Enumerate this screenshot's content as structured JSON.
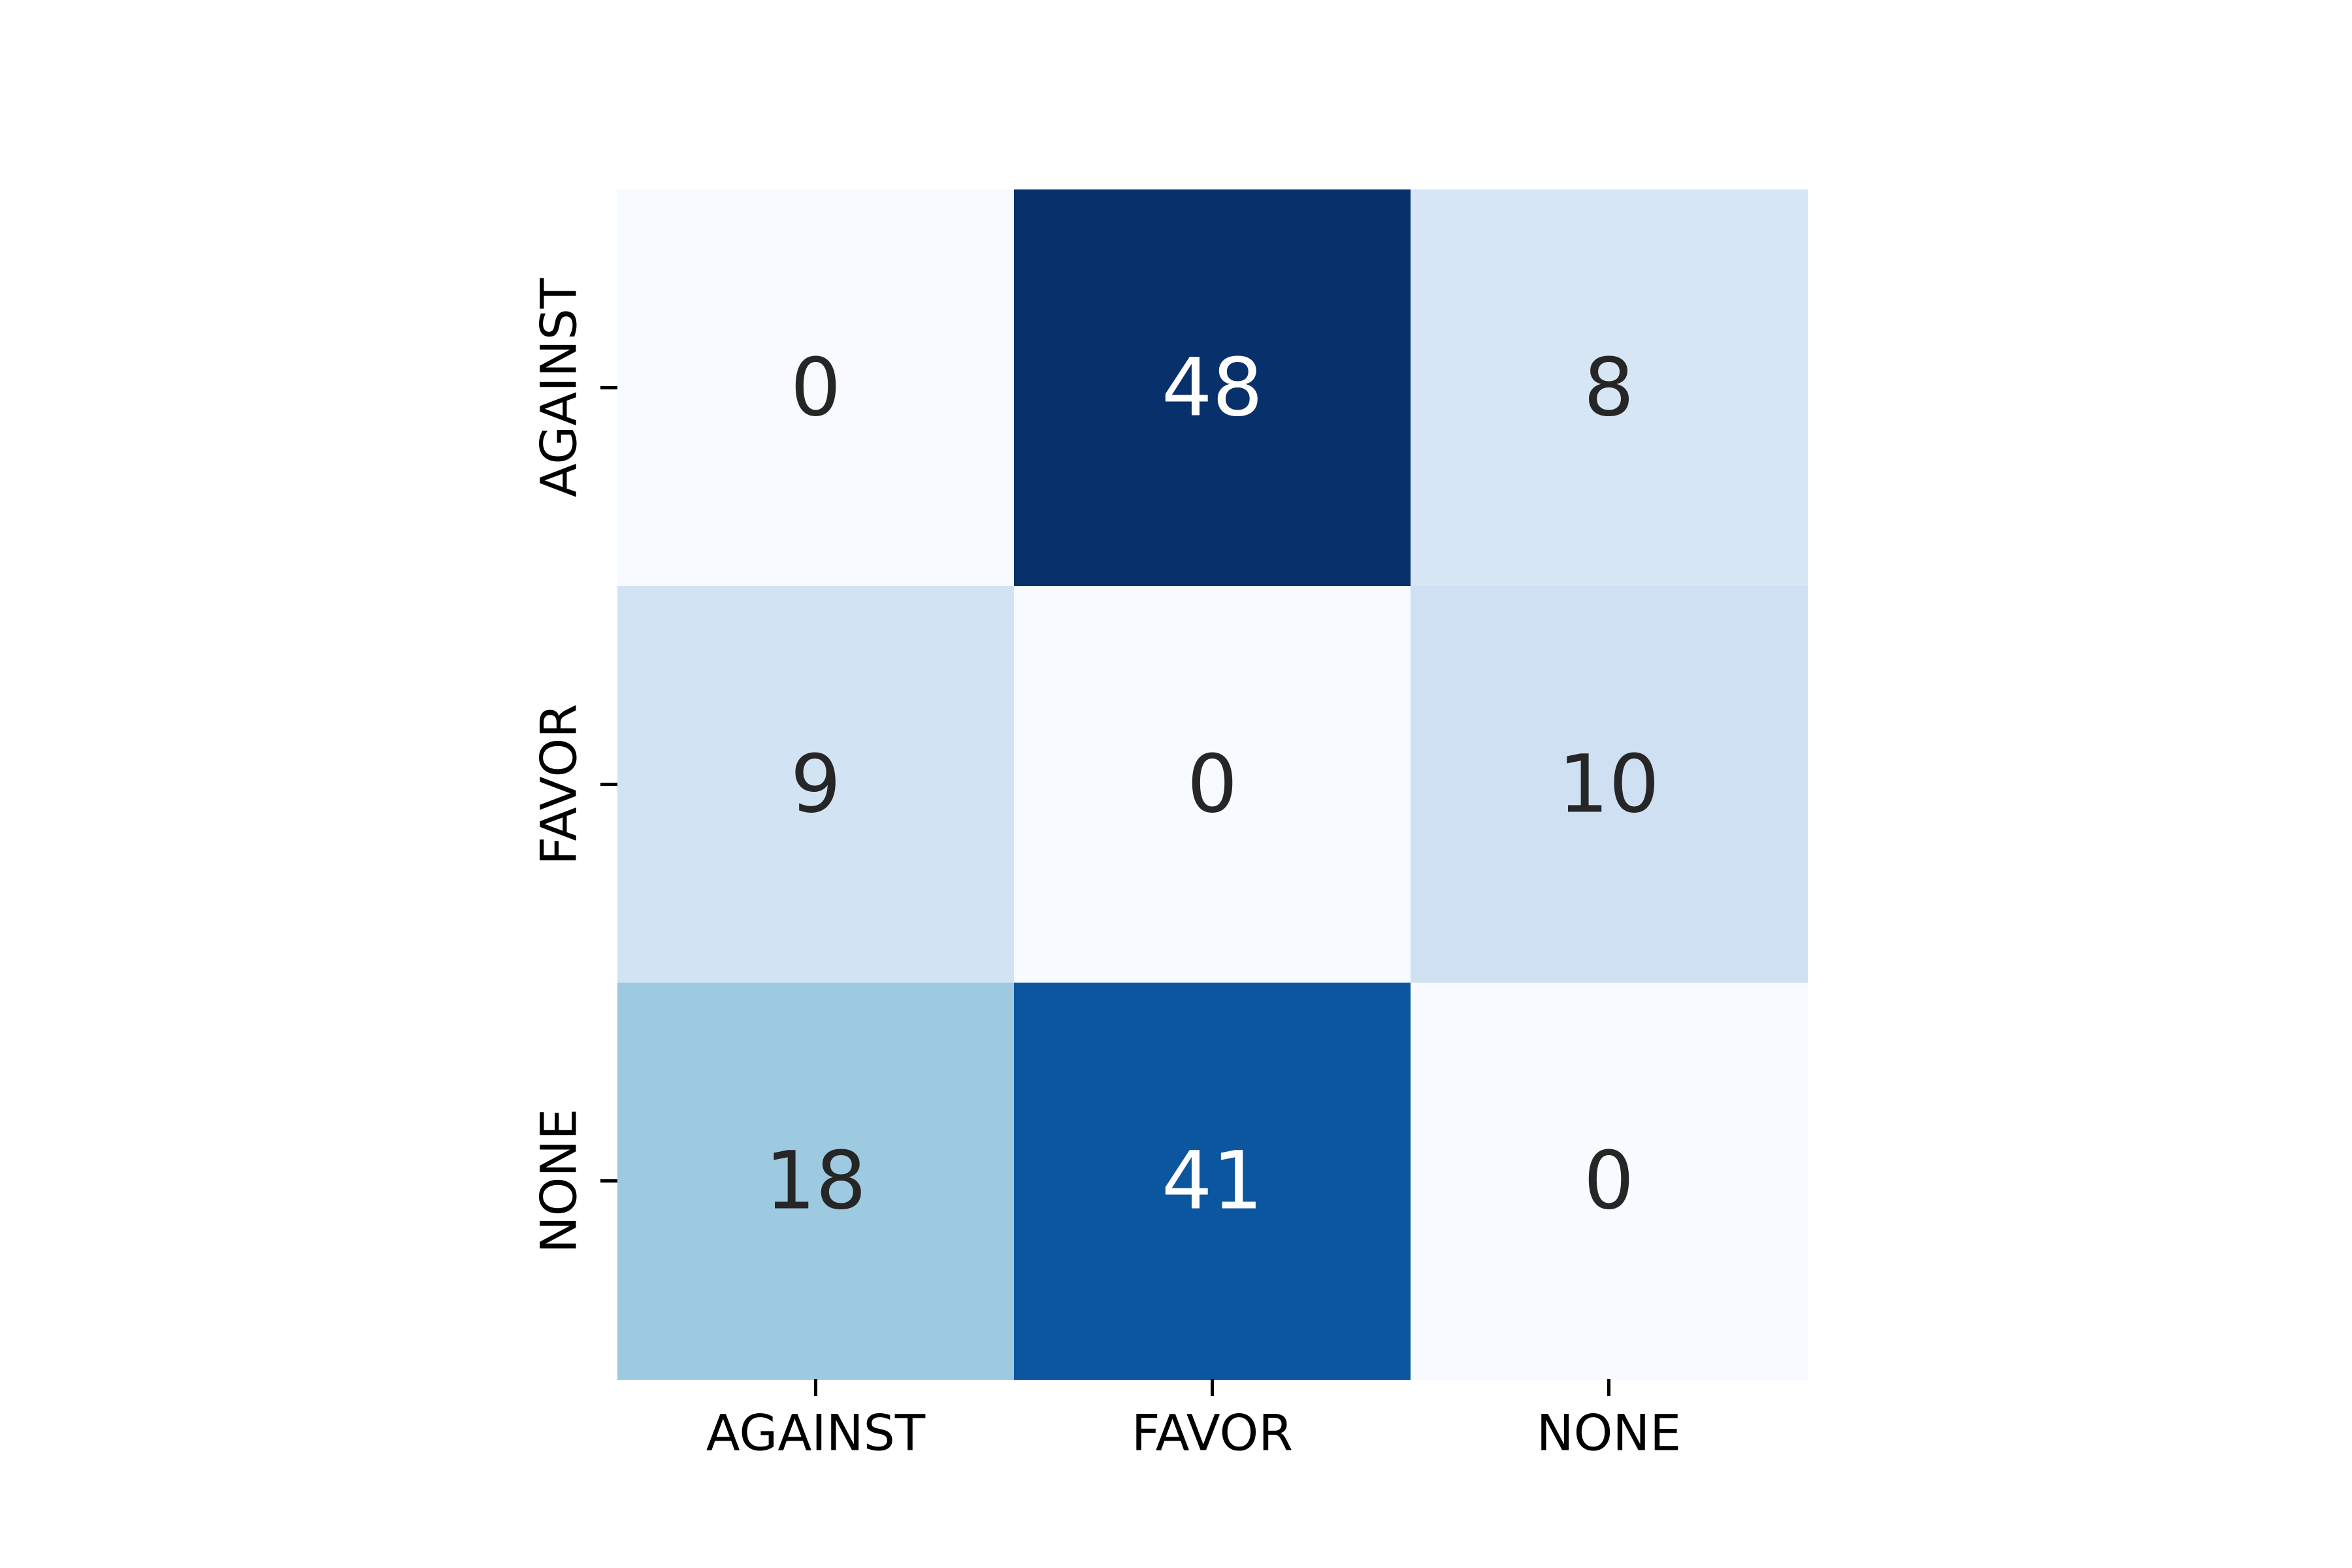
{
  "chart_data": {
    "type": "heatmap",
    "x_categories": [
      "AGAINST",
      "FAVOR",
      "NONE"
    ],
    "y_categories": [
      "AGAINST",
      "FAVOR",
      "NONE"
    ],
    "values": [
      [
        0,
        48,
        8
      ],
      [
        9,
        0,
        10
      ],
      [
        18,
        41,
        0
      ]
    ],
    "title": "",
    "xlabel": "",
    "ylabel": "",
    "colormap": "Blues",
    "color_range": [
      0,
      48
    ],
    "colorbar": false,
    "grid": false,
    "annotations": true,
    "colors": {
      "low": "#f7fbff",
      "high": "#08306b",
      "text_dark": "#262626",
      "text_light": "#ffffff"
    }
  }
}
